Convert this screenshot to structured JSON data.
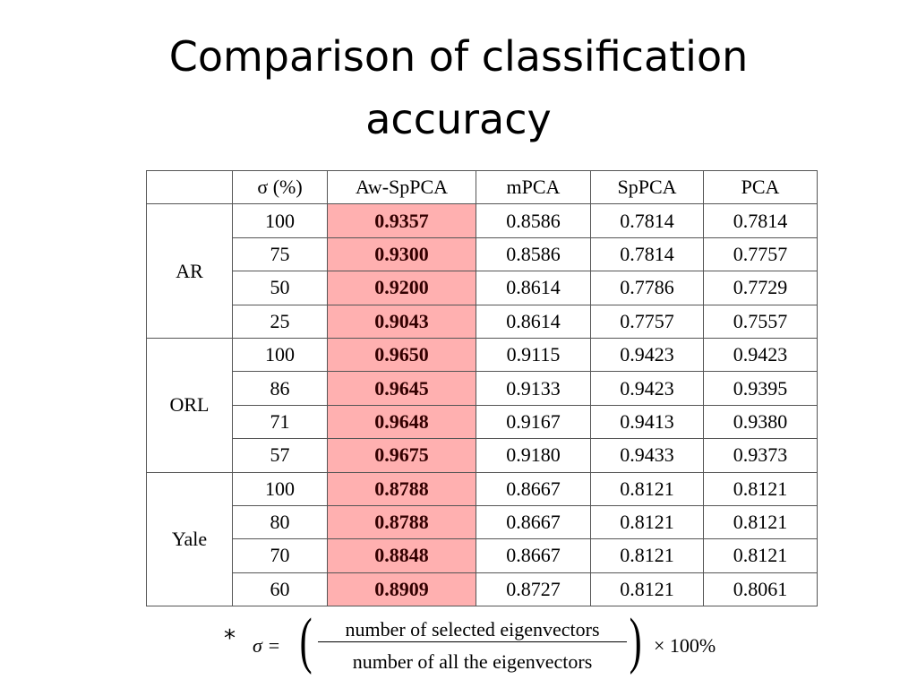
{
  "title": "Comparison of classification accuracy",
  "table": {
    "header": [
      "",
      "σ (%)",
      "Aw-SpPCA",
      "mPCA",
      "SpPCA",
      "PCA"
    ],
    "groups": [
      {
        "name": "AR",
        "rows": [
          [
            "100",
            "0.9357",
            "0.8586",
            "0.7814",
            "0.7814"
          ],
          [
            "75",
            "0.9300",
            "0.8586",
            "0.7814",
            "0.7757"
          ],
          [
            "50",
            "0.9200",
            "0.8614",
            "0.7786",
            "0.7729"
          ],
          [
            "25",
            "0.9043",
            "0.8614",
            "0.7757",
            "0.7557"
          ]
        ]
      },
      {
        "name": "ORL",
        "rows": [
          [
            "100",
            "0.9650",
            "0.9115",
            "0.9423",
            "0.9423"
          ],
          [
            "86",
            "0.9645",
            "0.9133",
            "0.9423",
            "0.9395"
          ],
          [
            "71",
            "0.9648",
            "0.9167",
            "0.9413",
            "0.9380"
          ],
          [
            "57",
            "0.9675",
            "0.9180",
            "0.9433",
            "0.9373"
          ]
        ]
      },
      {
        "name": "Yale",
        "rows": [
          [
            "100",
            "0.8788",
            "0.8667",
            "0.8121",
            "0.8121"
          ],
          [
            "80",
            "0.8788",
            "0.8667",
            "0.8121",
            "0.8121"
          ],
          [
            "70",
            "0.8848",
            "0.8667",
            "0.8121",
            "0.8121"
          ],
          [
            "60",
            "0.8909",
            "0.8727",
            "0.8121",
            "0.8061"
          ]
        ]
      }
    ]
  },
  "footnote": {
    "marker": "*",
    "lhs": "σ =",
    "numerator": "number of selected eigenvectors",
    "denominator": "number of all the eigenvectors",
    "factor": "× 100%"
  }
}
